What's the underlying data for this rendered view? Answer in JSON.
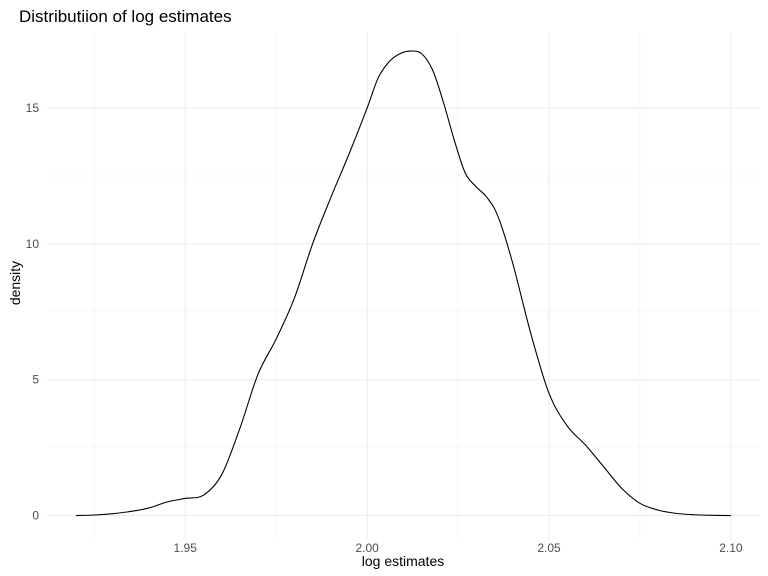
{
  "chart_data": {
    "type": "line",
    "title": "Distributiion of log estimates",
    "xlabel": "log estimates",
    "ylabel": "density",
    "xlim": [
      1.912,
      2.108
    ],
    "ylim": [
      -0.9,
      17.8
    ],
    "x_ticks": [
      1.95,
      2.0,
      2.05,
      2.1
    ],
    "x_tick_labels": [
      "1.95",
      "2.00",
      "2.05",
      "2.10"
    ],
    "x_minor_ticks": [
      1.925,
      1.975,
      2.025,
      2.075
    ],
    "y_ticks": [
      0,
      5,
      10,
      15
    ],
    "y_tick_labels": [
      "0",
      "5",
      "10",
      "15"
    ],
    "y_minor_ticks": [
      2.5,
      7.5,
      12.5
    ],
    "grid": true,
    "legend": "none",
    "line_color": "#000000",
    "series": [
      {
        "x": [
          1.92,
          1.925,
          1.93,
          1.935,
          1.94,
          1.945,
          1.95,
          1.955,
          1.96,
          1.965,
          1.97,
          1.975,
          1.98,
          1.985,
          1.99,
          1.995,
          2.0,
          2.003,
          2.006,
          2.009,
          2.012,
          2.015,
          2.018,
          2.021,
          2.024,
          2.027,
          2.03,
          2.033,
          2.036,
          2.04,
          2.045,
          2.05,
          2.055,
          2.06,
          2.065,
          2.07,
          2.075,
          2.08,
          2.085,
          2.09,
          2.095,
          2.1
        ],
        "y": [
          0.0,
          0.02,
          0.07,
          0.15,
          0.28,
          0.5,
          0.63,
          0.75,
          1.5,
          3.2,
          5.2,
          6.5,
          8.0,
          10.0,
          11.7,
          13.3,
          15.0,
          16.1,
          16.7,
          17.0,
          17.1,
          17.0,
          16.4,
          15.2,
          13.8,
          12.6,
          12.1,
          11.7,
          11.0,
          9.3,
          6.7,
          4.5,
          3.3,
          2.6,
          1.8,
          1.0,
          0.45,
          0.2,
          0.08,
          0.03,
          0.01,
          0.0
        ]
      }
    ]
  }
}
